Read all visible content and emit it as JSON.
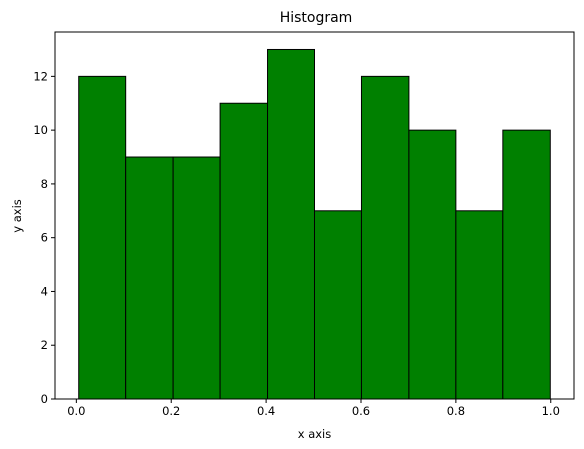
{
  "chart_data": {
    "type": "bar",
    "title": "Histogram",
    "xlabel": "x axis",
    "ylabel": "y axis",
    "bin_edges": [
      0.005,
      0.104,
      0.204,
      0.303,
      0.403,
      0.502,
      0.601,
      0.701,
      0.8,
      0.899,
      0.999
    ],
    "values": [
      12,
      9,
      9,
      11,
      13,
      7,
      12,
      10,
      7,
      10
    ],
    "xlim": [
      -0.045,
      1.049
    ],
    "ylim": [
      0,
      13.65
    ],
    "xticks": [
      0.0,
      0.2,
      0.4,
      0.6,
      0.8,
      1.0
    ],
    "xtick_labels": [
      "0.0",
      "0.2",
      "0.4",
      "0.6",
      "0.8",
      "1.0"
    ],
    "yticks": [
      0,
      2,
      4,
      6,
      8,
      10,
      12
    ],
    "ytick_labels": [
      "0",
      "2",
      "4",
      "6",
      "8",
      "10",
      "12"
    ],
    "bar_color": "#008000",
    "edge_color": "#000000",
    "grid": false
  }
}
